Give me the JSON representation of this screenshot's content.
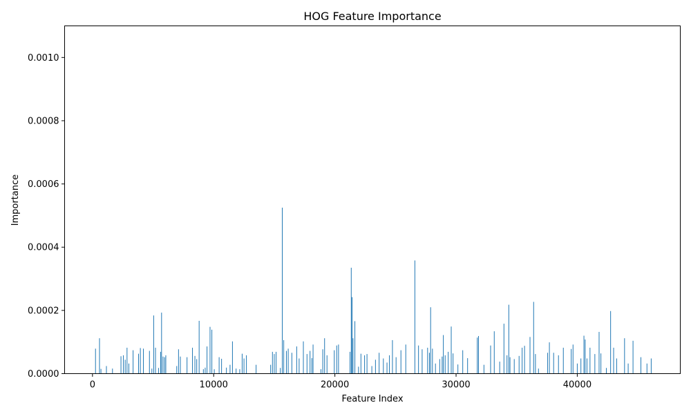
{
  "chart_data": {
    "type": "bar",
    "title": "HOG Feature Importance",
    "xlabel": "Feature Index",
    "ylabel": "Importance",
    "xlim": [
      -2300,
      48500
    ],
    "ylim": [
      0,
      0.0011
    ],
    "x_ticks": [
      0,
      10000,
      20000,
      30000,
      40000
    ],
    "x_tick_labels": [
      "0",
      "10000",
      "20000",
      "30000",
      "40000"
    ],
    "y_ticks": [
      0,
      0.0002,
      0.0004,
      0.0006,
      0.0008,
      0.001
    ],
    "y_tick_labels": [
      "0.0000",
      "0.0002",
      "0.0004",
      "0.0006",
      "0.0008",
      "0.0010"
    ],
    "grid": false,
    "bar_color": "#1f77b4",
    "bars": [
      [
        250,
        7.9e-05
      ],
      [
        580,
        0.000112
      ],
      [
        700,
        1.5e-05
      ],
      [
        1150,
        2.4e-05
      ],
      [
        1650,
        1.6e-05
      ],
      [
        2350,
        5.5e-05
      ],
      [
        2550,
        5.8e-05
      ],
      [
        2700,
        4.4e-05
      ],
      [
        2850,
        8.2e-05
      ],
      [
        3000,
        3.2e-05
      ],
      [
        3350,
        7.4e-05
      ],
      [
        3800,
        6.3e-05
      ],
      [
        3950,
        8.1e-05
      ],
      [
        4200,
        7.9e-05
      ],
      [
        4700,
        7.2e-05
      ],
      [
        4900,
        1.6e-05
      ],
      [
        5050,
        0.000184
      ],
      [
        5200,
        8.2e-05
      ],
      [
        5450,
        1.8e-05
      ],
      [
        5620,
        6.9e-05
      ],
      [
        5700,
        0.000193
      ],
      [
        5820,
        5.4e-05
      ],
      [
        5950,
        5.2e-05
      ],
      [
        6050,
        5.8e-05
      ],
      [
        6950,
        2.4e-05
      ],
      [
        7100,
        7.7e-05
      ],
      [
        7250,
        5.4e-05
      ],
      [
        7800,
        5.2e-05
      ],
      [
        8250,
        8.2e-05
      ],
      [
        8450,
        5.6e-05
      ],
      [
        8600,
        4.6e-05
      ],
      [
        8800,
        0.000167
      ],
      [
        9150,
        1.4e-05
      ],
      [
        9300,
        1.9e-05
      ],
      [
        9450,
        8.6e-05
      ],
      [
        9700,
        0.000148
      ],
      [
        9850,
        0.000139
      ],
      [
        10050,
        1.4e-05
      ],
      [
        10450,
        5.2e-05
      ],
      [
        10650,
        4.7e-05
      ],
      [
        11050,
        1.9e-05
      ],
      [
        11350,
        2.8e-05
      ],
      [
        11550,
        0.000102
      ],
      [
        11850,
        1.6e-05
      ],
      [
        12150,
        1.4e-05
      ],
      [
        12350,
        6.3e-05
      ],
      [
        12500,
        4.8e-05
      ],
      [
        12700,
        5.8e-05
      ],
      [
        13500,
        2.8e-05
      ],
      [
        14700,
        2.8e-05
      ],
      [
        14850,
        6.9e-05
      ],
      [
        15000,
        6.2e-05
      ],
      [
        15150,
        6.9e-05
      ],
      [
        15500,
        1.8e-05
      ],
      [
        15660,
        0.000525
      ],
      [
        15780,
        0.000106
      ],
      [
        16000,
        7.2e-05
      ],
      [
        16150,
        7.9e-05
      ],
      [
        16450,
        6.6e-05
      ],
      [
        16850,
        8.6e-05
      ],
      [
        17050,
        4.8e-05
      ],
      [
        17400,
        0.000102
      ],
      [
        17700,
        6.2e-05
      ],
      [
        17950,
        7.2e-05
      ],
      [
        18100,
        4.9e-05
      ],
      [
        18200,
        9.2e-05
      ],
      [
        18850,
        1.4e-05
      ],
      [
        19000,
        7.7e-05
      ],
      [
        19150,
        0.000112
      ],
      [
        19350,
        5.8e-05
      ],
      [
        19950,
        7.4e-05
      ],
      [
        20150,
        8.9e-05
      ],
      [
        20300,
        9.2e-05
      ],
      [
        21250,
        6.9e-05
      ],
      [
        21350,
        0.000335
      ],
      [
        21420,
        0.000242
      ],
      [
        21500,
        0.000112
      ],
      [
        21650,
        0.000166
      ],
      [
        21950,
        2.2e-05
      ],
      [
        22150,
        6.3e-05
      ],
      [
        22450,
        5.8e-05
      ],
      [
        22650,
        6.2e-05
      ],
      [
        23050,
        2.4e-05
      ],
      [
        23350,
        4.4e-05
      ],
      [
        23650,
        6.6e-05
      ],
      [
        24000,
        4.8e-05
      ],
      [
        24300,
        3.5e-05
      ],
      [
        24500,
        5.8e-05
      ],
      [
        24750,
        0.000106
      ],
      [
        25050,
        5.2e-05
      ],
      [
        25450,
        7.4e-05
      ],
      [
        25850,
        9.2e-05
      ],
      [
        26600,
        0.000358
      ],
      [
        26900,
        8.9e-05
      ],
      [
        27200,
        7.7e-05
      ],
      [
        27650,
        8.2e-05
      ],
      [
        27800,
        6.6e-05
      ],
      [
        27900,
        0.00021
      ],
      [
        28050,
        7.9e-05
      ],
      [
        28300,
        3.2e-05
      ],
      [
        28650,
        4.6e-05
      ],
      [
        28850,
        5.4e-05
      ],
      [
        28950,
        0.000122
      ],
      [
        29100,
        5.8e-05
      ],
      [
        29350,
        6.9e-05
      ],
      [
        29600,
        0.000149
      ],
      [
        29750,
        6.4e-05
      ],
      [
        30150,
        2.9e-05
      ],
      [
        30550,
        7.4e-05
      ],
      [
        30950,
        4.9e-05
      ],
      [
        31750,
        0.000114
      ],
      [
        31850,
        0.000119
      ],
      [
        32300,
        2.8e-05
      ],
      [
        32850,
        8.9e-05
      ],
      [
        33150,
        0.000134
      ],
      [
        33600,
        3.8e-05
      ],
      [
        33950,
        0.000158
      ],
      [
        34200,
        5.8e-05
      ],
      [
        34350,
        0.000218
      ],
      [
        34450,
        5.2e-05
      ],
      [
        34800,
        4.6e-05
      ],
      [
        35200,
        5.6e-05
      ],
      [
        35450,
        8.2e-05
      ],
      [
        35650,
        8.8e-05
      ],
      [
        36100,
        0.000116
      ],
      [
        36400,
        0.000227
      ],
      [
        36550,
        6.2e-05
      ],
      [
        36800,
        1.6e-05
      ],
      [
        37550,
        6.6e-05
      ],
      [
        37700,
        9.9e-05
      ],
      [
        38050,
        6.6e-05
      ],
      [
        38450,
        5.8e-05
      ],
      [
        38850,
        8.2e-05
      ],
      [
        39500,
        7.8e-05
      ],
      [
        39650,
        9.2e-05
      ],
      [
        40000,
        3.2e-05
      ],
      [
        40300,
        4.8e-05
      ],
      [
        40550,
        0.00012
      ],
      [
        40650,
        0.000108
      ],
      [
        40800,
        4.8e-05
      ],
      [
        41050,
        8.2e-05
      ],
      [
        41450,
        6.2e-05
      ],
      [
        41800,
        0.000132
      ],
      [
        41950,
        6.4e-05
      ],
      [
        42400,
        1.8e-05
      ],
      [
        42750,
        0.000198
      ],
      [
        43000,
        8.2e-05
      ],
      [
        43250,
        4.8e-05
      ],
      [
        43900,
        0.000112
      ],
      [
        44200,
        3.2e-05
      ],
      [
        44600,
        0.000104
      ],
      [
        45250,
        5.2e-05
      ],
      [
        45750,
        3.2e-05
      ],
      [
        46100,
        4.8e-05
      ]
    ]
  }
}
